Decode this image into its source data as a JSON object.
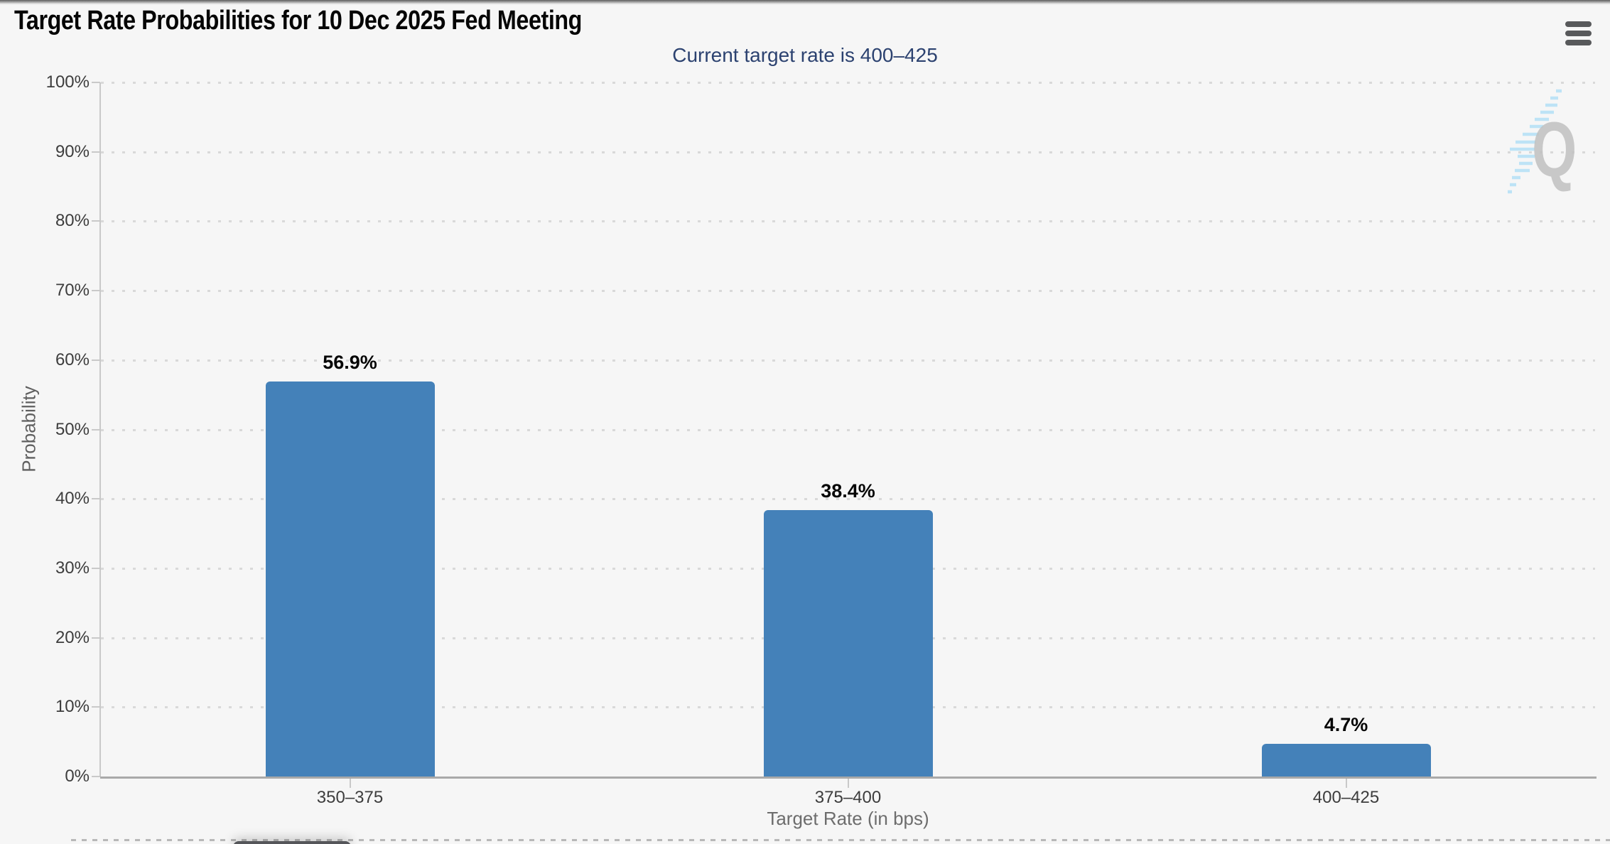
{
  "panel": {
    "menu_icon": "hamburger-icon",
    "watermark_letter": "Q"
  },
  "chart_data": {
    "type": "bar",
    "title": "Target Rate Probabilities for 10 Dec 2025 Fed Meeting",
    "subtitle": "Current target rate is 400–425",
    "categories": [
      "350–375",
      "375–400",
      "400–425"
    ],
    "values": [
      56.9,
      38.4,
      4.7
    ],
    "value_labels": [
      "56.9%",
      "38.4%",
      "4.7%"
    ],
    "xlabel": "Target Rate (in bps)",
    "ylabel": "Probability",
    "ylim": [
      0,
      100
    ],
    "ytick_labels": [
      "0%",
      "10%",
      "20%",
      "30%",
      "40%",
      "50%",
      "60%",
      "70%",
      "80%",
      "90%",
      "100%"
    ],
    "grid": "dotted-horizontal",
    "legend": "none",
    "colors": {
      "bar": "#4481B9",
      "subtitle_text": "#2C4270",
      "tick_label": "#3D3D3D",
      "axis_title": "#6D6D6D",
      "watermark_q": "#C1C1C1",
      "watermark_swoosh": "#B7E1F6"
    }
  }
}
